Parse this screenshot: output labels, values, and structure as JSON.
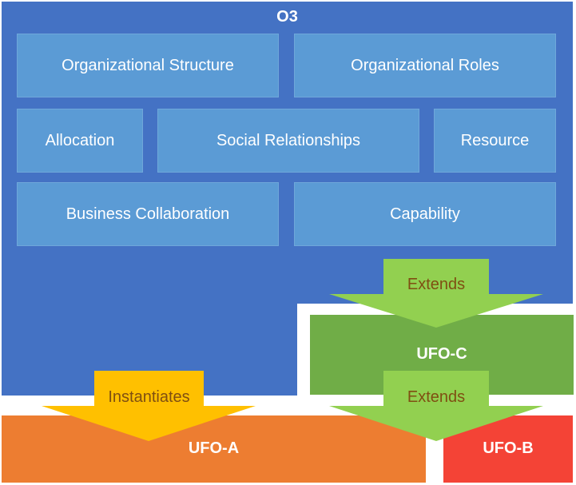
{
  "o3": {
    "title": "O3",
    "boxes": {
      "organizational_structure": "Organizational Structure",
      "organizational_roles": "Organizational Roles",
      "allocation": "Allocation",
      "social_relationships": "Social Relationships",
      "resource": "Resource",
      "business_collaboration": "Business Collaboration",
      "capability": "Capability"
    }
  },
  "ufo_c": {
    "label": "UFO-C"
  },
  "ufo_a": {
    "label": "UFO-A"
  },
  "ufo_b": {
    "label": "UFO-B"
  },
  "arrows": {
    "extends_top": "Extends",
    "extends_bottom": "Extends",
    "instantiates": "Instantiates"
  },
  "colors": {
    "o3": "#4472c4",
    "box": "#5b9bd5",
    "ufo_c": "#70ad47",
    "ufo_a": "#ed7d31",
    "ufo_b": "#f44336",
    "extends_arrow": "#92d050",
    "instantiates_arrow": "#ffc000",
    "arrow_text": "#7f4f12"
  }
}
